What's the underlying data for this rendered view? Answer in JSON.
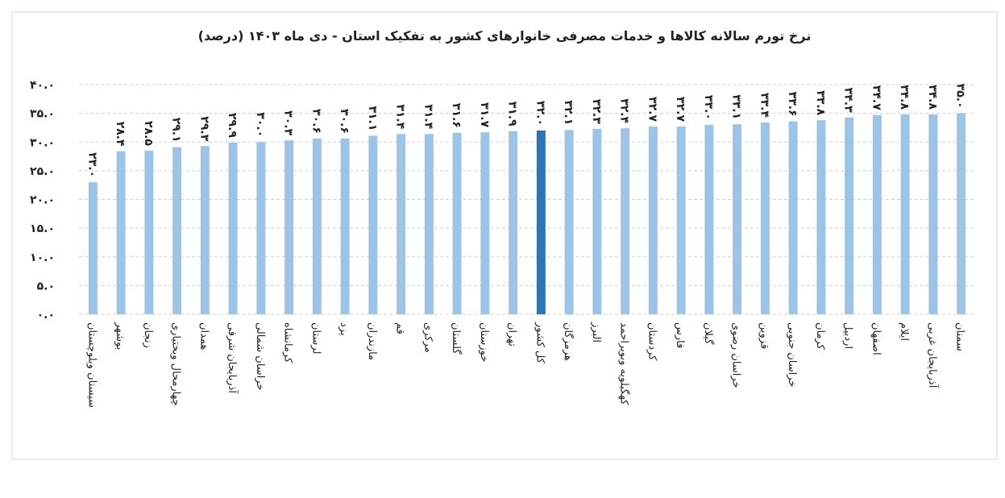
{
  "chart_data": {
    "type": "bar",
    "title": "نرخ تورم سالانه کالاها و خدمات مصرفی خانوارهای کشور به تفکیک استان - دی ماه ۱۴۰۳ (درصد)",
    "categories": [
      "سیستان وبلوچستان",
      "بوشهر",
      "زنجان",
      "چهارمحال وبختیاری",
      "همدان",
      "آذربایجان شرقی",
      "خراسان شمالی",
      "کرمانشاه",
      "لرستان",
      "یزد",
      "مازندران",
      "قم",
      "مرکزی",
      "گلستان",
      "خوزستان",
      "تهران",
      "کل کشور",
      "هرمزگان",
      "البرز",
      "کهگیلویه وبویراحمد",
      "کردستان",
      "فارس",
      "گیلان",
      "خراسان رضوی",
      "قزوین",
      "خراسان جنوبی",
      "کرمان",
      "اردبیل",
      "اصفهان",
      "ایلام",
      "آذربایجان غربی",
      "سمنان"
    ],
    "values": [
      23.0,
      28.4,
      28.5,
      29.1,
      29.3,
      29.9,
      30.0,
      30.3,
      30.6,
      30.6,
      31.1,
      31.4,
      31.4,
      31.6,
      31.7,
      31.9,
      32.0,
      32.1,
      32.3,
      32.4,
      32.7,
      32.7,
      33.0,
      33.1,
      33.4,
      33.6,
      33.8,
      34.3,
      34.7,
      34.8,
      34.8,
      35.0
    ],
    "value_labels": [
      "۲۳.۰",
      "۲۸.۴",
      "۲۸.۵",
      "۲۹.۱",
      "۲۹.۳",
      "۲۹.۹",
      "۳۰.۰",
      "۳۰.۳",
      "۳۰.۶",
      "۳۰.۶",
      "۳۱.۱",
      "۳۱.۴",
      "۳۱.۴",
      "۳۱.۶",
      "۳۱.۷",
      "۳۱.۹",
      "۳۲.۰",
      "۳۲.۱",
      "۳۲.۳",
      "۳۲.۴",
      "۳۲.۷",
      "۳۲.۷",
      "۳۳.۰",
      "۳۳.۱",
      "۳۳.۴",
      "۳۳.۶",
      "۳۳.۸",
      "۳۴.۳",
      "۳۴.۷",
      "۳۴.۸",
      "۳۴.۸",
      "۳۵.۰"
    ],
    "colors": [
      "#9dc3e6",
      "#9dc3e6",
      "#9dc3e6",
      "#9dc3e6",
      "#9dc3e6",
      "#9dc3e6",
      "#9dc3e6",
      "#9dc3e6",
      "#9dc3e6",
      "#9dc3e6",
      "#9dc3e6",
      "#9dc3e6",
      "#9dc3e6",
      "#9dc3e6",
      "#9dc3e6",
      "#9dc3e6",
      "#2e75b6",
      "#9dc3e6",
      "#9dc3e6",
      "#9dc3e6",
      "#9dc3e6",
      "#9dc3e6",
      "#9dc3e6",
      "#9dc3e6",
      "#9dc3e6",
      "#9dc3e6",
      "#9dc3e6",
      "#9dc3e6",
      "#9dc3e6",
      "#9dc3e6",
      "#9dc3e6",
      "#9dc3e6"
    ],
    "ylim": [
      0,
      40
    ],
    "yticks": [
      {
        "value": 0,
        "label": "۰.۰"
      },
      {
        "value": 5,
        "label": "۵.۰"
      },
      {
        "value": 10,
        "label": "۱۰.۰"
      },
      {
        "value": 15,
        "label": "۱۵.۰"
      },
      {
        "value": 20,
        "label": "۲۰.۰"
      },
      {
        "value": 25,
        "label": "۲۵.۰"
      },
      {
        "value": 30,
        "label": "۳۰.۰"
      },
      {
        "value": 35,
        "label": "۳۵.۰"
      },
      {
        "value": 40,
        "label": "۴۰.۰"
      }
    ],
    "grid": true
  }
}
